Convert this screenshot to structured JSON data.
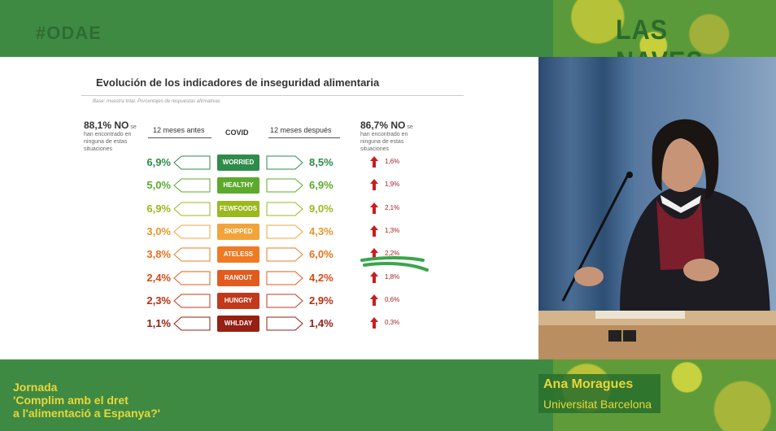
{
  "header": {
    "hashtag": "#ODAE",
    "brand": "LAS NAVES"
  },
  "slide": {
    "title": "Evolución de los indicadores de inseguridad alimentaria",
    "subtitle": "Base: muestra total. Porcentajes de respuestas afirmativas",
    "left_note_pct": "88,1% NO",
    "left_note_se": "se",
    "left_note_text": "han encontrado en ninguna de estas situaciones",
    "right_note_pct": "86,7% NO",
    "right_note_se": "se",
    "right_note_text": "han encontrado en ninguna de estas situaciones",
    "header_before": "12 meses antes",
    "header_covid": "COVID",
    "header_after": "12 meses después",
    "rows": [
      {
        "before": "6,9%",
        "label": "WORRIED",
        "after": "8,5%",
        "delta": "1,6%",
        "color": "#2e8b4a",
        "text_color": "#2e8b4a"
      },
      {
        "before": "5,0%",
        "label": "HEALTHY",
        "after": "6,9%",
        "delta": "1,9%",
        "color": "#5caa2c",
        "text_color": "#5caa2c"
      },
      {
        "before": "6,9%",
        "label": "FEWFOODS",
        "after": "9,0%",
        "delta": "2,1%",
        "color": "#9bb81e",
        "text_color": "#9bb81e"
      },
      {
        "before": "3,0%",
        "label": "SKIPPED",
        "after": "4,3%",
        "delta": "1,3%",
        "color": "#f2a43a",
        "text_color": "#e6962a"
      },
      {
        "before": "3,8%",
        "label": "ATELESS",
        "after": "6,0%",
        "delta": "2,2%",
        "color": "#ef7a24",
        "text_color": "#e8701a"
      },
      {
        "before": "2,4%",
        "label": "RANOUT",
        "after": "4,2%",
        "delta": "1,8%",
        "color": "#e35a1e",
        "text_color": "#d84a14"
      },
      {
        "before": "2,3%",
        "label": "HUNGRY",
        "after": "2,9%",
        "delta": "0,6%",
        "color": "#c0391b",
        "text_color": "#b53012"
      },
      {
        "before": "1,1%",
        "label": "WHLDAY",
        "after": "1,4%",
        "delta": "0,3%",
        "color": "#962014",
        "text_color": "#962014"
      }
    ]
  },
  "footer": {
    "event_line1": "Jornada",
    "event_line2": "'Complim amb el dret",
    "event_line3": "a l'alimentació a Espanya?'",
    "speaker_name": "Ana Moragues",
    "speaker_affiliation": "Universitat Barcelona"
  },
  "icons": {
    "up_arrow": "up-arrow-icon",
    "marker": "highlight-marker"
  }
}
